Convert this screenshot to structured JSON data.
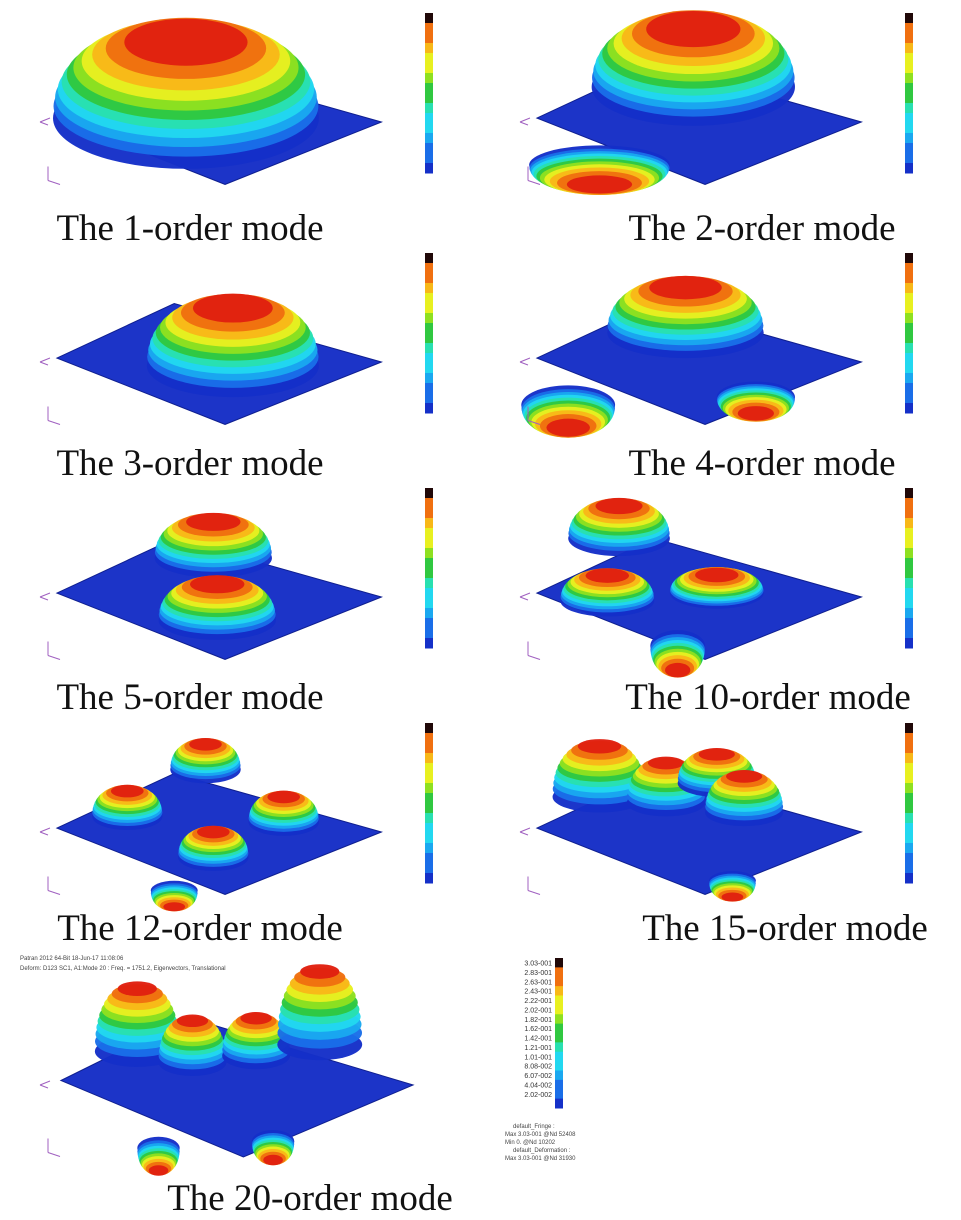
{
  "panels": [
    {
      "caption": "The 1-order mode"
    },
    {
      "caption": "The 2-order mode"
    },
    {
      "caption": "The 3-order mode"
    },
    {
      "caption": "The 4-order mode"
    },
    {
      "caption": "The 5-order mode"
    },
    {
      "caption": "The 10-order mode"
    },
    {
      "caption": "The 12-order mode"
    },
    {
      "caption": "The 15-order mode"
    },
    {
      "caption": "The 20-order mode",
      "header": [
        "Patran 2012 64-Bit 18-Jun-17 11:08:06",
        "Deform: D123 SC1, A1:Mode 20 : Freq. = 1751.2, Eigenvectors, Translational"
      ],
      "legend_labels": [
        "3.03-001",
        "2.83-001",
        "2.63-001",
        "2.43-001",
        "2.22-001",
        "2.02-001",
        "1.82-001",
        "1.62-001",
        "1.42-001",
        "1.21-001",
        "1.01-001",
        "8.08-002",
        "6.07-002",
        "4.04-002",
        "2.02-002"
      ],
      "fringe_info": [
        "default_Fringe :",
        "Max 3.03-001 @Nd 52408",
        "Min 0. @Nd 10202",
        "default_Deformation :",
        "Max 3.03-001 @Nd 31930"
      ]
    }
  ]
}
